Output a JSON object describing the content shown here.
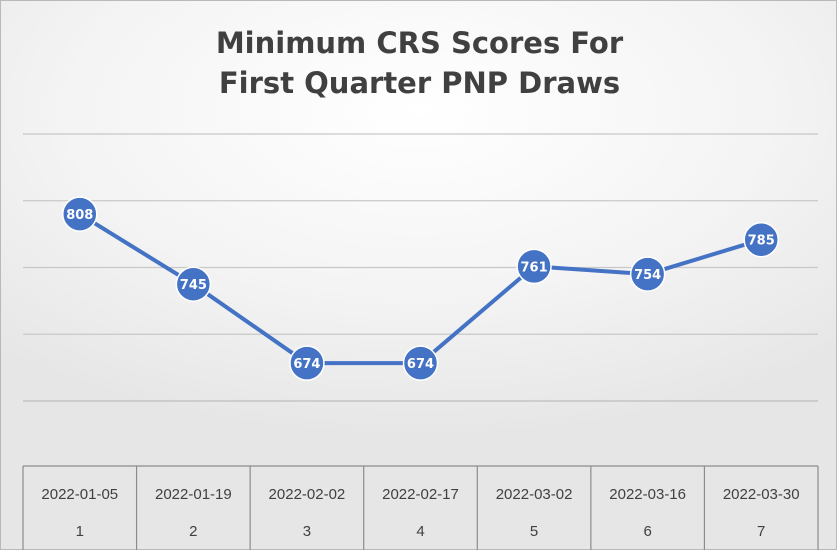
{
  "chart_data": {
    "type": "line",
    "title": "Minimum CRS Scores For First Quarter PNP Draws",
    "title_lines": [
      "Minimum CRS Scores For",
      "First Quarter PNP Draws"
    ],
    "xlabel": "",
    "ylabel": "",
    "categories": [
      "2022-01-05",
      "2022-01-19",
      "2022-02-02",
      "2022-02-17",
      "2022-03-02",
      "2022-03-16",
      "2022-03-30"
    ],
    "category_index": [
      "1",
      "2",
      "3",
      "4",
      "5",
      "6",
      "7"
    ],
    "series": [
      {
        "values": [
          808,
          745,
          674,
          674,
          761,
          754,
          785
        ],
        "color": "#4472c4"
      }
    ],
    "ylim": [
      640,
      880
    ],
    "y_gridlines": [
      700,
      760,
      820,
      880
    ],
    "grid": true,
    "y_axis_labels_shown": false,
    "x_axis_style": "table"
  }
}
